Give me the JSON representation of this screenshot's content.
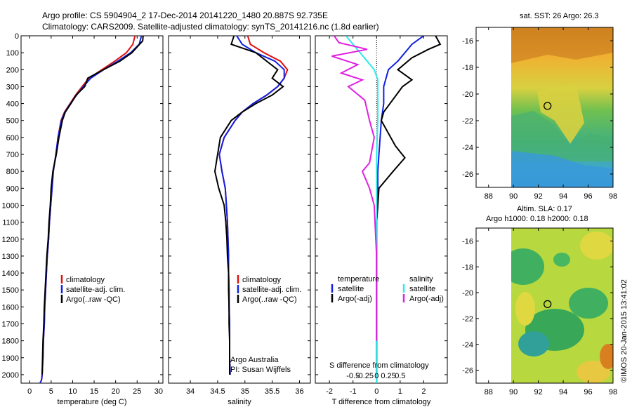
{
  "header": {
    "line1": "Argo profile: CS 5904904_2 17-Dec-2014 20141220_1480 20.887S 92.735E",
    "line2": "Climatology: CARS2009. Satellite-adjusted climatology: synTS_20141216.nc (1.8d earlier)"
  },
  "colors": {
    "climatology": "#e01010",
    "satellite": "#1020e0",
    "argo": "#000000",
    "salinity_sat": "#30e8e8",
    "salinity_argo": "#e020e0"
  },
  "legend_labels": {
    "climatology": "climatology",
    "satellite_adj": "satellite-adj. clim.",
    "argo_raw": "Argo(..raw -QC)"
  },
  "credits": {
    "line1": "Argo Australia",
    "line2": "PI: Susan Wijffels"
  },
  "diff_legend": {
    "temperature": "temperature",
    "salinity": "salinity",
    "satellite": "satellite",
    "argo_adj": "Argo(-adj)"
  },
  "diff_top_label": "S difference from climatology",
  "diff_top_ticks": [
    "-0.5",
    "-0.25",
    "0",
    "0.25",
    "0.5"
  ],
  "map_top": {
    "title": "sat. SST: 26 Argo: 26.3"
  },
  "map_bottom": {
    "title1": "Altim. SLA: 0.17",
    "title2": "Argo h1000: 0.18 h2000: 0.18"
  },
  "side_stamp": "©IMOS 20-Jan-2015 13:41:02",
  "chart_data": [
    {
      "type": "line",
      "xlabel": "temperature (deg C)",
      "xlim": [
        -2,
        31
      ],
      "xticks": [
        0,
        5,
        10,
        15,
        20,
        25,
        30
      ],
      "ylim": [
        0,
        2050
      ],
      "yticks": [
        0,
        100,
        200,
        300,
        400,
        500,
        600,
        700,
        800,
        900,
        1000,
        1100,
        1200,
        1300,
        1400,
        1500,
        1600,
        1700,
        1800,
        1900,
        2000
      ],
      "series": [
        {
          "name": "climatology",
          "x": [
            24.5,
            24.0,
            22.5,
            19.8,
            16.8,
            13.8,
            12.2,
            10.7,
            9.4,
            8.1,
            7.3,
            6.6,
            6.1,
            5.5,
            5.2,
            4.9,
            4.6,
            4.4,
            4.1,
            3.9,
            3.7,
            3.5,
            3.4,
            3.2,
            3.1,
            2.9,
            2.8,
            2.7,
            2.6,
            2.5,
            2.5
          ],
          "y": [
            0,
            50,
            100,
            150,
            200,
            250,
            300,
            350,
            400,
            450,
            500,
            600,
            700,
            800,
            900,
            1000,
            1100,
            1200,
            1300,
            1400,
            1500,
            1600,
            1700,
            1800,
            1900,
            2000,
            2025,
            2035,
            2040,
            2045,
            2050
          ]
        },
        {
          "name": "satellite-adj. clim.",
          "x": [
            26.0,
            25.5,
            23.5,
            20.5,
            17.2,
            14.2,
            12.5,
            10.9,
            9.5,
            8.2,
            7.4,
            6.6,
            6.1,
            5.5,
            5.2,
            4.9,
            4.6,
            4.4,
            4.1,
            3.9,
            3.7,
            3.5,
            3.4,
            3.2,
            3.1,
            2.9,
            2.8,
            2.7,
            2.6,
            2.5,
            2.5
          ],
          "y": [
            0,
            50,
            100,
            150,
            200,
            250,
            300,
            350,
            400,
            450,
            500,
            600,
            700,
            800,
            900,
            1000,
            1100,
            1200,
            1300,
            1400,
            1500,
            1600,
            1700,
            1800,
            1900,
            2000,
            2025,
            2035,
            2040,
            2045,
            2050
          ]
        },
        {
          "name": "Argo(..raw -QC)",
          "x": [
            26.4,
            26.3,
            23.8,
            21.0,
            17.2,
            13.5,
            12.8,
            10.8,
            9.6,
            8.3,
            7.6,
            6.8,
            6.2,
            5.4,
            5.0,
            4.8,
            4.5,
            4.3,
            4.0,
            3.8,
            3.6,
            3.4,
            3.3,
            3.1,
            3.0,
            2.9
          ],
          "y": [
            0,
            30,
            100,
            150,
            200,
            250,
            300,
            350,
            400,
            450,
            500,
            600,
            700,
            800,
            900,
            1000,
            1100,
            1200,
            1300,
            1400,
            1500,
            1600,
            1700,
            1800,
            1900,
            2000
          ]
        }
      ]
    },
    {
      "type": "line",
      "xlabel": "salinity",
      "xlim": [
        33.6,
        36.2
      ],
      "xticks": [
        34,
        34.5,
        35,
        35.5,
        36
      ],
      "ylim": [
        0,
        2050
      ],
      "series": [
        {
          "name": "climatology",
          "x": [
            35.05,
            35.1,
            35.35,
            35.65,
            35.78,
            35.72,
            35.6,
            35.4,
            35.15,
            34.95,
            34.82,
            34.62,
            34.53,
            34.58,
            34.64,
            34.66,
            34.68,
            34.69,
            34.7,
            34.7,
            34.71,
            34.71,
            34.72,
            34.72,
            34.72,
            34.73
          ],
          "y": [
            0,
            50,
            100,
            150,
            200,
            250,
            300,
            350,
            400,
            450,
            500,
            600,
            700,
            800,
            900,
            1000,
            1100,
            1200,
            1300,
            1400,
            1500,
            1600,
            1700,
            1800,
            1900,
            2000
          ]
        },
        {
          "name": "satellite-adj. clim.",
          "x": [
            34.85,
            34.95,
            35.2,
            35.55,
            35.72,
            35.72,
            35.6,
            35.4,
            35.15,
            34.95,
            34.82,
            34.62,
            34.53,
            34.58,
            34.64,
            34.66,
            34.68,
            34.69,
            34.7,
            34.7,
            34.71,
            34.71,
            34.72,
            34.72,
            34.72,
            34.73
          ],
          "y": [
            0,
            50,
            100,
            150,
            200,
            250,
            300,
            350,
            400,
            450,
            500,
            600,
            700,
            800,
            900,
            1000,
            1100,
            1200,
            1300,
            1400,
            1500,
            1600,
            1700,
            1800,
            1900,
            2000
          ]
        },
        {
          "name": "Argo(..raw -QC)",
          "x": [
            34.8,
            34.75,
            35.2,
            35.4,
            35.6,
            35.5,
            35.7,
            35.5,
            35.2,
            34.95,
            34.75,
            34.55,
            34.5,
            34.45,
            34.52,
            34.62,
            34.65,
            34.67,
            34.68,
            34.7,
            34.7,
            34.71,
            34.71,
            34.72,
            34.72,
            34.72
          ],
          "y": [
            0,
            50,
            100,
            150,
            200,
            250,
            300,
            350,
            400,
            450,
            500,
            600,
            700,
            800,
            900,
            1000,
            1100,
            1200,
            1300,
            1400,
            1500,
            1600,
            1700,
            1800,
            1900,
            2000
          ]
        }
      ]
    },
    {
      "type": "line",
      "xlabel": "T difference from climatology",
      "xlim": [
        -2.6,
        3.0
      ],
      "xticks": [
        -2,
        -1,
        0,
        1,
        2
      ],
      "ylim": [
        0,
        2050
      ],
      "series": [
        {
          "name": "temperature satellite",
          "x": [
            2.0,
            1.5,
            1.2,
            0.9,
            0.5,
            0.3,
            0.3,
            0.2,
            0.15,
            0.1,
            0.05,
            0.05,
            0.05,
            0,
            0,
            0,
            0,
            0,
            0,
            0,
            0
          ],
          "y": [
            0,
            50,
            100,
            150,
            200,
            300,
            400,
            500,
            600,
            700,
            800,
            900,
            1000,
            1100,
            1200,
            1300,
            1400,
            1500,
            1600,
            1800,
            2050
          ]
        },
        {
          "name": "temperature Argo(-adj)",
          "x": [
            2.5,
            2.7,
            2.2,
            1.5,
            0.9,
            1.5,
            1.1,
            0.3,
            0.2,
            0.8,
            1.2,
            0.7,
            0.1,
            0.05,
            0,
            0,
            0,
            0,
            0
          ],
          "y": [
            0,
            50,
            80,
            130,
            200,
            260,
            300,
            450,
            500,
            650,
            720,
            800,
            900,
            1000,
            1100,
            1300,
            1500,
            1800,
            2000
          ]
        },
        {
          "name": "salinity satellite",
          "x": [
            -1.3,
            -1.0,
            -0.7,
            -0.4,
            -0.1,
            0.05,
            0.05,
            0.05,
            0,
            0,
            0,
            0,
            0,
            0
          ],
          "y": [
            0,
            50,
            100,
            150,
            200,
            260,
            300,
            500,
            700,
            900,
            1100,
            1400,
            1700,
            2050
          ]
        },
        {
          "name": "salinity Argo(-adj)",
          "x": [
            -1.8,
            -1.6,
            -0.4,
            -1.9,
            -0.8,
            -1.5,
            -0.6,
            -1.2,
            -0.5,
            -0.3,
            -0.1,
            -0.3,
            -0.6,
            -0.3,
            -0.1,
            0,
            0
          ],
          "y": [
            0,
            40,
            80,
            120,
            170,
            220,
            260,
            300,
            380,
            500,
            600,
            750,
            800,
            900,
            1000,
            1300,
            1800
          ]
        }
      ]
    },
    {
      "type": "heatmap",
      "title": "sat. SST: 26 Argo: 26.3",
      "xticks": [
        88,
        90,
        92,
        94,
        96,
        98
      ],
      "yticks": [
        -16,
        -18,
        -20,
        -22,
        -24,
        -26
      ],
      "xlim": [
        87,
        98
      ],
      "ylim": [
        -27,
        -15
      ],
      "marker": {
        "lon": 92.735,
        "lat": -20.887
      }
    },
    {
      "type": "heatmap",
      "title": "Altim. SLA: 0.17",
      "subtitle": "Argo h1000: 0.18 h2000: 0.18",
      "xticks": [
        88,
        90,
        92,
        94,
        96,
        98
      ],
      "yticks": [
        -16,
        -18,
        -20,
        -22,
        -24,
        -26
      ],
      "xlim": [
        87,
        98
      ],
      "ylim": [
        -27,
        -15
      ],
      "marker": {
        "lon": 92.735,
        "lat": -20.887
      }
    }
  ]
}
